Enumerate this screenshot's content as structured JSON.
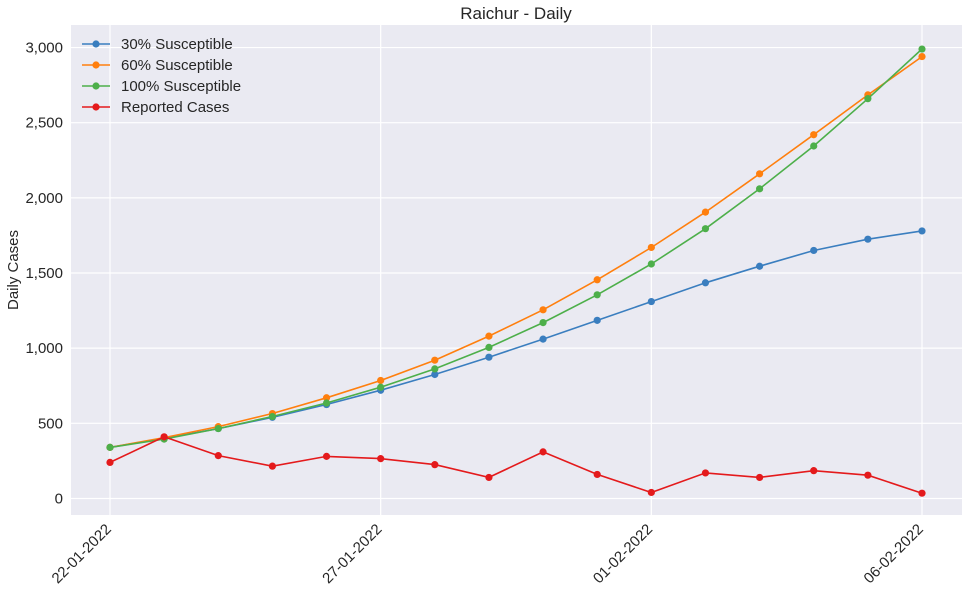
{
  "chart_data": {
    "type": "line",
    "title": "Raichur - Daily",
    "xlabel": "",
    "ylabel": "Daily Cases",
    "x": [
      "22-01-2022",
      "23-01-2022",
      "24-01-2022",
      "25-01-2022",
      "26-01-2022",
      "27-01-2022",
      "28-01-2022",
      "29-01-2022",
      "30-01-2022",
      "31-01-2022",
      "01-02-2022",
      "02-02-2022",
      "03-02-2022",
      "04-02-2022",
      "05-02-2022",
      "06-02-2022"
    ],
    "xticks": [
      "22-01-2022",
      "27-01-2022",
      "01-02-2022",
      "06-02-2022"
    ],
    "xtick_indices": [
      0,
      5,
      10,
      15
    ],
    "ylim": [
      -110,
      3150
    ],
    "yticks": [
      0,
      500,
      1000,
      1500,
      2000,
      2500,
      3000
    ],
    "ytick_labels": [
      "0",
      "500",
      "1,000",
      "1,500",
      "2,000",
      "2,500",
      "3,000"
    ],
    "grid": true,
    "legend_position": "top-left",
    "series": [
      {
        "name": "30% Susceptible",
        "color": "#3a7ebf",
        "values": [
          340,
          400,
          465,
          540,
          625,
          720,
          825,
          940,
          1060,
          1185,
          1310,
          1435,
          1545,
          1650,
          1725,
          1780
        ]
      },
      {
        "name": "60% Susceptible",
        "color": "#ff7f0e",
        "values": [
          340,
          405,
          478,
          565,
          670,
          785,
          920,
          1080,
          1255,
          1455,
          1670,
          1905,
          2160,
          2420,
          2685,
          2940
        ]
      },
      {
        "name": "100% Susceptible",
        "color": "#4daf4a",
        "values": [
          340,
          395,
          465,
          545,
          635,
          740,
          862,
          1005,
          1170,
          1355,
          1560,
          1795,
          2060,
          2345,
          2660,
          2990
        ]
      },
      {
        "name": "Reported Cases",
        "color": "#e41a1c",
        "values": [
          240,
          410,
          285,
          215,
          280,
          265,
          225,
          140,
          310,
          160,
          40,
          170,
          140,
          185,
          155,
          35
        ]
      }
    ]
  }
}
